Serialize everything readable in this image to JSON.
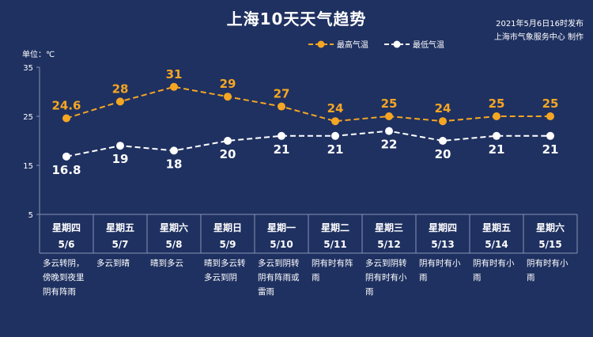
{
  "title": "上海10天天气趋势",
  "publish": {
    "line1": "2021年5月6日16时发布",
    "line2": "上海市气象服务中心 制作"
  },
  "unit_label": "单位：℃",
  "colors": {
    "background": "#1f3161",
    "high": "#f5a623",
    "low": "#ffffff",
    "grid": "#8794b3"
  },
  "chart_data": {
    "type": "line",
    "ylim": [
      5,
      35
    ],
    "yticks": [
      5,
      15,
      25,
      35
    ],
    "grid": false,
    "legend": "top-center",
    "categories": [
      {
        "day": "星期四",
        "date": "5/6",
        "desc": "多云转阴，傍晚到夜里阴有阵雨"
      },
      {
        "day": "星期五",
        "date": "5/7",
        "desc": "多云到晴"
      },
      {
        "day": "星期六",
        "date": "5/8",
        "desc": "晴到多云"
      },
      {
        "day": "星期日",
        "date": "5/9",
        "desc": "晴到多云转多云到阴"
      },
      {
        "day": "星期一",
        "date": "5/10",
        "desc": "多云到阴转阴有阵雨或雷雨"
      },
      {
        "day": "星期二",
        "date": "5/11",
        "desc": "阴有时有阵雨"
      },
      {
        "day": "星期三",
        "date": "5/12",
        "desc": "多云到阴转阴有时有小雨"
      },
      {
        "day": "星期四",
        "date": "5/13",
        "desc": "阴有时有小雨"
      },
      {
        "day": "星期五",
        "date": "5/14",
        "desc": "阴有时有小雨"
      },
      {
        "day": "星期六",
        "date": "5/15",
        "desc": "阴有时有小雨"
      }
    ],
    "series": [
      {
        "name": "最高气温",
        "key": "high",
        "values": [
          24.6,
          28,
          31,
          29,
          27,
          24,
          25,
          24,
          25,
          25
        ],
        "labels": [
          "24.6",
          "28",
          "31",
          "29",
          "27",
          "24",
          "25",
          "24",
          "25",
          "25"
        ]
      },
      {
        "name": "最低气温",
        "key": "low",
        "values": [
          16.8,
          19,
          18,
          20,
          21,
          21,
          22,
          20,
          21,
          21
        ],
        "labels": [
          "16.8",
          "19",
          "18",
          "20",
          "21",
          "21",
          "22",
          "20",
          "21",
          "21"
        ]
      }
    ]
  }
}
